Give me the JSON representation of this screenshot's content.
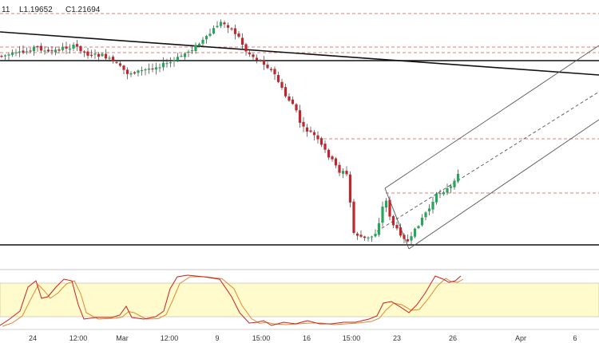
{
  "chart_data": {
    "type": "candlestick",
    "ohlc_readout": [
      "11",
      "L1.19652",
      "C1.21694"
    ],
    "x_tick_labels": [
      "24",
      "12:00",
      "Mar",
      "12:00",
      "9",
      "15:00",
      "16",
      "15:00",
      "23",
      "26",
      "Apr",
      "6"
    ],
    "colors": {
      "up": "#26a65b",
      "down": "#c0262d",
      "wick": "#3a3a3a",
      "horizontal_dashed": "#d9534f",
      "support_resistance": "#111111",
      "channel": "#555555",
      "stoch_k": "#cc1f1f",
      "stoch_d": "#e08a2e",
      "stoch_band": "#fffbcc"
    },
    "indicator": {
      "type": "stochastic",
      "band_shaded": true
    }
  }
}
